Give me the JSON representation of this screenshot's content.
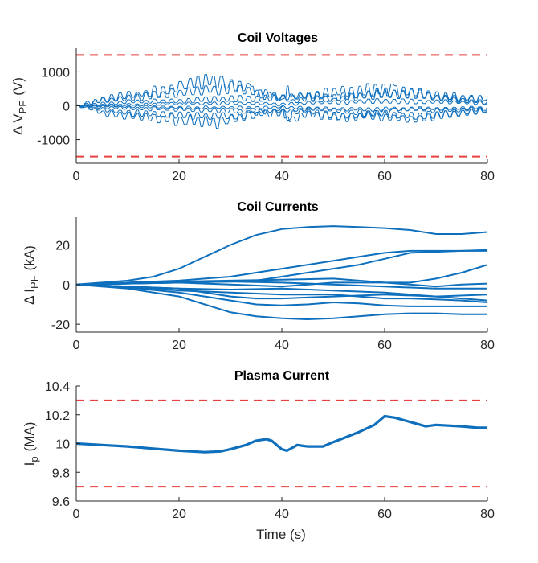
{
  "chart_data": [
    {
      "type": "line",
      "title": "Coil Voltages",
      "ylabel_prefix": "Δ V",
      "ylabel_sub": "PF",
      "ylabel_unit": "(V)",
      "xlim": [
        0,
        80
      ],
      "ylim": [
        -1700,
        1700
      ],
      "xticks": [
        0,
        20,
        40,
        60,
        80
      ],
      "yticks": [
        -1000,
        0,
        1000
      ],
      "ytick_labels": [
        "-1000",
        "0",
        "1000"
      ],
      "limits": [
        1500,
        -1500
      ],
      "limit_color": "#e8413f",
      "series_color": "#0e6fbd",
      "style": "many oscillating traces",
      "series": [
        {
          "x": [
            0,
            2,
            5,
            10,
            15,
            20,
            22,
            25,
            28,
            30,
            34,
            38,
            40,
            41,
            42,
            45,
            50,
            55,
            58,
            62,
            65,
            70,
            75,
            80
          ],
          "y": [
            0,
            -50,
            -200,
            -300,
            -380,
            -420,
            -450,
            -480,
            -470,
            -400,
            -250,
            -150,
            -60,
            -500,
            -200,
            -150,
            -350,
            -320,
            -200,
            -150,
            -80,
            -150,
            -120,
            -100
          ]
        },
        {
          "x": [
            0,
            2,
            5,
            10,
            15,
            20,
            22,
            25,
            28,
            30,
            34,
            38,
            40,
            41,
            42,
            45,
            50,
            55,
            58,
            62,
            65,
            70,
            75,
            80
          ],
          "y": [
            0,
            80,
            200,
            300,
            420,
            560,
            650,
            780,
            740,
            650,
            450,
            250,
            150,
            420,
            250,
            300,
            400,
            430,
            500,
            450,
            380,
            300,
            250,
            200
          ]
        },
        {
          "x": [
            0,
            5,
            10,
            15,
            20,
            25,
            30,
            35,
            40,
            42,
            45,
            50,
            55,
            60,
            65,
            70,
            75,
            80
          ],
          "y": [
            0,
            150,
            250,
            300,
            380,
            470,
            520,
            380,
            250,
            120,
            250,
            180,
            300,
            380,
            350,
            250,
            150,
            120
          ]
        },
        {
          "x": [
            0,
            5,
            10,
            15,
            20,
            25,
            30,
            35,
            40,
            42,
            45,
            50,
            55,
            60,
            65,
            70,
            75,
            80
          ],
          "y": [
            0,
            -120,
            -200,
            -250,
            -280,
            -300,
            -320,
            -250,
            -200,
            -400,
            -250,
            -300,
            -280,
            -320,
            -400,
            -300,
            -200,
            -150
          ]
        },
        {
          "x": [
            0,
            5,
            10,
            20,
            30,
            40,
            45,
            50,
            55,
            60,
            65,
            70,
            75,
            80
          ],
          "y": [
            0,
            60,
            120,
            150,
            200,
            250,
            300,
            260,
            300,
            350,
            400,
            250,
            200,
            180
          ]
        },
        {
          "x": [
            0,
            5,
            10,
            20,
            30,
            40,
            45,
            50,
            55,
            60,
            65,
            70,
            75,
            80
          ],
          "y": [
            0,
            -40,
            -80,
            -100,
            -150,
            -150,
            -100,
            -120,
            -200,
            -250,
            -300,
            -250,
            -200,
            -150
          ]
        },
        {
          "x": [
            0,
            10,
            20,
            30,
            40,
            50,
            60,
            70,
            80
          ],
          "y": [
            0,
            30,
            60,
            80,
            50,
            100,
            150,
            120,
            80
          ]
        },
        {
          "x": [
            0,
            10,
            20,
            30,
            40,
            50,
            60,
            70,
            80
          ],
          "y": [
            0,
            -20,
            -50,
            -60,
            -40,
            -90,
            -100,
            -80,
            -60
          ]
        }
      ]
    },
    {
      "type": "line",
      "title": "Coil Currents",
      "ylabel_prefix": "Δ I",
      "ylabel_sub": "PF",
      "ylabel_unit": "(kA)",
      "xlim": [
        0,
        80
      ],
      "ylim": [
        -24,
        34
      ],
      "xticks": [
        0,
        20,
        40,
        60,
        80
      ],
      "yticks": [
        -20,
        0,
        20
      ],
      "ytick_labels": [
        "-20",
        "0",
        "20"
      ],
      "series_color": "#0e6fbd",
      "series": [
        {
          "x": [
            0,
            10,
            15,
            20,
            25,
            30,
            35,
            40,
            45,
            50,
            55,
            60,
            65,
            70,
            75,
            80
          ],
          "y": [
            0,
            2,
            4,
            8,
            14,
            20,
            25,
            28,
            29,
            29.5,
            29,
            28.5,
            27.5,
            25.5,
            25.5,
            26.5
          ]
        },
        {
          "x": [
            0,
            10,
            20,
            25,
            30,
            35,
            40,
            45,
            50,
            55,
            60,
            65,
            70,
            75,
            80
          ],
          "y": [
            0,
            1,
            2,
            3,
            4,
            6,
            8,
            10,
            12,
            14,
            16,
            17,
            17,
            17,
            17
          ]
        },
        {
          "x": [
            0,
            10,
            20,
            30,
            35,
            40,
            45,
            50,
            55,
            60,
            65,
            70,
            75,
            80
          ],
          "y": [
            0,
            0.5,
            1,
            1.5,
            2,
            4,
            6,
            8,
            10,
            13,
            16,
            16.5,
            17,
            17.5
          ]
        },
        {
          "x": [
            0,
            10,
            20,
            30,
            40,
            50,
            55,
            60,
            65,
            70,
            75,
            80
          ],
          "y": [
            0,
            1,
            1.5,
            2,
            2.5,
            3,
            2,
            1,
            1,
            3,
            6,
            10
          ]
        },
        {
          "x": [
            0,
            10,
            20,
            30,
            40,
            50,
            60,
            65,
            70,
            75,
            80
          ],
          "y": [
            0,
            0.5,
            1,
            0,
            -1,
            1,
            1,
            0,
            -1,
            0,
            0.5
          ]
        },
        {
          "x": [
            0,
            10,
            20,
            30,
            40,
            50,
            60,
            65,
            70,
            75,
            80
          ],
          "y": [
            0,
            -1,
            -2,
            -2.5,
            -2,
            -3,
            -4,
            -5,
            -6,
            -7,
            -8
          ]
        },
        {
          "x": [
            0,
            10,
            20,
            30,
            40,
            50,
            55,
            60,
            65,
            70,
            75,
            80
          ],
          "y": [
            0,
            -1,
            -3,
            -4,
            -5,
            -5,
            -6,
            -7,
            -7,
            -7.5,
            -8,
            -9
          ]
        },
        {
          "x": [
            0,
            10,
            20,
            25,
            30,
            35,
            40,
            50,
            60,
            70,
            80
          ],
          "y": [
            0,
            -1,
            -2,
            -4,
            -6,
            -7,
            -7,
            -6,
            -5,
            -6,
            -5
          ]
        },
        {
          "x": [
            0,
            10,
            20,
            25,
            30,
            35,
            40,
            45,
            50,
            55,
            60,
            65,
            70,
            75,
            80
          ],
          "y": [
            0,
            -1.5,
            -4,
            -6,
            -8,
            -10,
            -10.5,
            -10,
            -9,
            -9.5,
            -10.5,
            -11,
            -11,
            -11,
            -11
          ]
        },
        {
          "x": [
            0,
            10,
            20,
            25,
            30,
            35,
            40,
            45,
            50,
            55,
            60,
            65,
            70,
            75,
            80
          ],
          "y": [
            0,
            -2,
            -6,
            -10,
            -14,
            -16,
            -17,
            -17.5,
            -17,
            -16,
            -15,
            -14.5,
            -14.5,
            -15,
            -15
          ]
        },
        {
          "x": [
            0,
            10,
            20,
            30,
            40,
            50,
            60,
            70,
            80
          ],
          "y": [
            0,
            0.5,
            1,
            1.5,
            1,
            0,
            -1,
            -2,
            -2
          ]
        }
      ]
    },
    {
      "type": "line",
      "title": "Plasma Current",
      "ylabel_prefix": "I",
      "ylabel_sub": "p",
      "ylabel_unit": "(MA)",
      "xlabel": "Time (s)",
      "xlim": [
        0,
        80
      ],
      "ylim": [
        9.6,
        10.4
      ],
      "xticks": [
        0,
        20,
        40,
        60,
        80
      ],
      "yticks": [
        9.6,
        9.8,
        10,
        10.2,
        10.4
      ],
      "ytick_labels": [
        "9.6",
        "9.8",
        "10",
        "10.2",
        "10.4"
      ],
      "limits": [
        10.3,
        9.7
      ],
      "limit_color": "#e8413f",
      "series_color": "#0e6fbd",
      "series": [
        {
          "x": [
            0,
            5,
            10,
            15,
            20,
            25,
            28,
            30,
            33,
            35,
            37,
            38,
            40,
            41,
            42,
            43,
            45,
            48,
            50,
            55,
            58,
            60,
            62,
            65,
            68,
            70,
            75,
            78,
            80
          ],
          "y": [
            10.0,
            9.99,
            9.98,
            9.965,
            9.95,
            9.94,
            9.945,
            9.96,
            9.99,
            10.02,
            10.03,
            10.02,
            9.96,
            9.95,
            9.97,
            9.99,
            9.98,
            9.98,
            10.01,
            10.08,
            10.13,
            10.19,
            10.18,
            10.15,
            10.12,
            10.13,
            10.12,
            10.11,
            10.11
          ]
        }
      ]
    }
  ]
}
